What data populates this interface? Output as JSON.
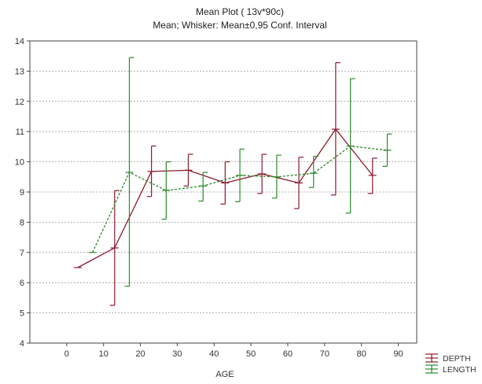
{
  "chart_data": {
    "type": "line",
    "title": "Mean Plot ( 13v*90c)",
    "subtitle": "Mean; Whisker: Mean±0,95 Conf. Interval",
    "xlabel": "AGE",
    "ylabel": "",
    "xlim": [
      -10,
      95
    ],
    "ylim": [
      4,
      14
    ],
    "x_ticks": [
      0,
      10,
      20,
      30,
      40,
      50,
      60,
      70,
      80,
      90
    ],
    "y_ticks": [
      4,
      5,
      6,
      7,
      8,
      9,
      10,
      11,
      12,
      13,
      14
    ],
    "grid": "horizontal dashed",
    "legend": "bottom-right, outside plot",
    "series": [
      {
        "name": "DEPTH",
        "color": "#8b1a2b",
        "line_style": "solid",
        "points": [
          {
            "x": 3,
            "mean": 6.5,
            "low": 6.5,
            "high": 6.5
          },
          {
            "x": 13,
            "mean": 7.15,
            "low": 5.25,
            "high": 9.05
          },
          {
            "x": 23,
            "mean": 9.68,
            "low": 8.85,
            "high": 10.52
          },
          {
            "x": 33,
            "mean": 9.72,
            "low": 9.2,
            "high": 10.25
          },
          {
            "x": 43,
            "mean": 9.3,
            "low": 8.6,
            "high": 10.0
          },
          {
            "x": 53,
            "mean": 9.6,
            "low": 8.95,
            "high": 10.25
          },
          {
            "x": 63,
            "mean": 9.3,
            "low": 8.45,
            "high": 10.15
          },
          {
            "x": 73,
            "mean": 11.08,
            "low": 8.9,
            "high": 13.28
          },
          {
            "x": 83,
            "mean": 9.55,
            "low": 8.95,
            "high": 10.12
          }
        ]
      },
      {
        "name": "LENGTH",
        "color": "#2a8a2a",
        "line_style": "dashed",
        "points": [
          {
            "x": 7,
            "mean": 7.0,
            "low": 7.0,
            "high": 7.0
          },
          {
            "x": 17,
            "mean": 9.65,
            "low": 5.88,
            "high": 13.45
          },
          {
            "x": 27,
            "mean": 9.05,
            "low": 8.1,
            "high": 10.0
          },
          {
            "x": 37,
            "mean": 9.2,
            "low": 8.7,
            "high": 9.65
          },
          {
            "x": 47,
            "mean": 9.55,
            "low": 8.68,
            "high": 10.42
          },
          {
            "x": 57,
            "mean": 9.5,
            "low": 8.8,
            "high": 10.22
          },
          {
            "x": 67,
            "mean": 9.62,
            "low": 9.15,
            "high": 10.18
          },
          {
            "x": 77,
            "mean": 10.52,
            "low": 8.3,
            "high": 12.75
          },
          {
            "x": 87,
            "mean": 10.38,
            "low": 9.85,
            "high": 10.92
          }
        ]
      }
    ]
  }
}
